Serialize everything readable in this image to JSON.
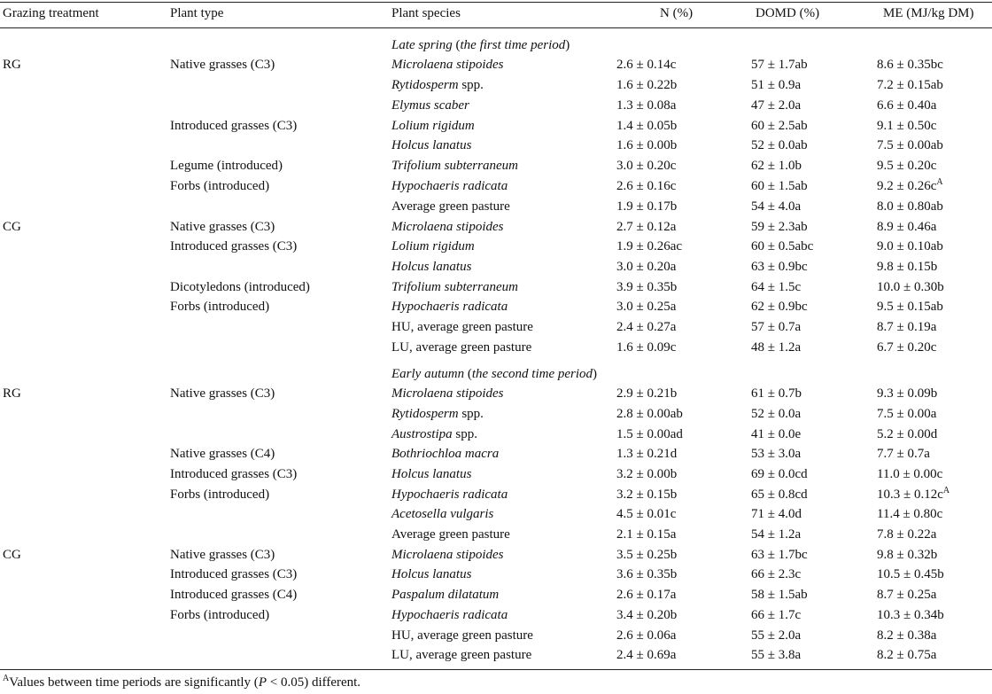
{
  "headers": {
    "treatment": "Grazing treatment",
    "type": "Plant type",
    "species": "Plant species",
    "n": "N (%)",
    "domd": "DOMD (%)",
    "me": "ME (MJ/kg DM)"
  },
  "periods": [
    {
      "season": "Late spring",
      "open": " (",
      "desc": "the first time period",
      "close": ")",
      "rows": [
        {
          "treatment": "RG",
          "type": "Native grasses (C3)",
          "species": "Microlaena stipoides",
          "italic": true,
          "n": "2.6 ± 0.14c",
          "domd": "57 ± 1.7ab",
          "me": "8.6 ± 0.35bc"
        },
        {
          "treatment": "",
          "type": "",
          "species": "Rytidosperm",
          "species_suffix": " spp.",
          "italic": true,
          "n": "1.6 ± 0.22b",
          "domd": "51 ± 0.9a",
          "me": "7.2 ± 0.15ab"
        },
        {
          "treatment": "",
          "type": "",
          "species": "Elymus scaber",
          "italic": true,
          "n": "1.3 ± 0.08a",
          "domd": "47 ± 2.0a",
          "me": "6.6 ± 0.40a"
        },
        {
          "treatment": "",
          "type": "Introduced grasses (C3)",
          "species": "Lolium rigidum",
          "italic": true,
          "n": "1.4 ± 0.05b",
          "domd": "60 ± 2.5ab",
          "me": "9.1 ± 0.50c"
        },
        {
          "treatment": "",
          "type": "",
          "species": "Holcus lanatus",
          "italic": true,
          "n": "1.6 ± 0.00b",
          "domd": "52 ± 0.0ab",
          "me": "7.5 ± 0.00ab"
        },
        {
          "treatment": "",
          "type": "Legume (introduced)",
          "species": "Trifolium subterraneum",
          "italic": true,
          "n": "3.0 ± 0.20c",
          "domd": "62 ± 1.0b",
          "me": "9.5 ± 0.20c"
        },
        {
          "treatment": "",
          "type": "Forbs (introduced)",
          "species": "Hypochaeris radicata",
          "italic": true,
          "n": "2.6 ± 0.16c",
          "domd": "60 ± 1.5ab",
          "me": "9.2 ± 0.26c",
          "me_sup": "A"
        },
        {
          "treatment": "",
          "type": "",
          "species": "Average green pasture",
          "italic": false,
          "n": "1.9 ± 0.17b",
          "domd": "54 ± 4.0a",
          "me": "8.0 ± 0.80ab"
        },
        {
          "treatment": "CG",
          "type": "Native grasses (C3)",
          "species": "Microlaena stipoides",
          "italic": true,
          "n": "2.7 ± 0.12a",
          "domd": "59 ± 2.3ab",
          "me": "8.9 ± 0.46a"
        },
        {
          "treatment": "",
          "type": "Introduced grasses (C3)",
          "species": "Lolium rigidum",
          "italic": true,
          "n": "1.9 ± 0.26ac",
          "domd": "60 ± 0.5abc",
          "me": "9.0 ± 0.10ab"
        },
        {
          "treatment": "",
          "type": "",
          "species": "Holcus lanatus",
          "italic": true,
          "n": "3.0 ± 0.20a",
          "domd": "63 ± 0.9bc",
          "me": "9.8 ± 0.15b"
        },
        {
          "treatment": "",
          "type": "Dicotyledons (introduced)",
          "species": "Trifolium subterraneum",
          "italic": true,
          "n": "3.9 ± 0.35b",
          "domd": "64 ± 1.5c",
          "me": "10.0 ± 0.30b"
        },
        {
          "treatment": "",
          "type": "Forbs (introduced)",
          "species": "Hypochaeris radicata",
          "italic": true,
          "n": "3.0 ± 0.25a",
          "domd": "62 ± 0.9bc",
          "me": "9.5 ± 0.15ab"
        },
        {
          "treatment": "",
          "type": "",
          "species": "HU, average green pasture",
          "italic": false,
          "n": "2.4 ± 0.27a",
          "domd": "57 ± 0.7a",
          "me": "8.7 ± 0.19a"
        },
        {
          "treatment": "",
          "type": "",
          "species": "LU, average green pasture",
          "italic": false,
          "n": "1.6 ± 0.09c",
          "domd": "48 ± 1.2a",
          "me": "6.7 ± 0.20c"
        }
      ]
    },
    {
      "season": "Early autumn",
      "open": " (",
      "desc": "the second time period",
      "close": ")",
      "rows": [
        {
          "treatment": "RG",
          "type": "Native grasses (C3)",
          "species": "Microlaena stipoides",
          "italic": true,
          "n": "2.9 ± 0.21b",
          "domd": "61 ± 0.7b",
          "me": "9.3 ± 0.09b"
        },
        {
          "treatment": "",
          "type": "",
          "species": "Rytidosperm",
          "species_suffix": " spp.",
          "italic": true,
          "n": "2.8 ± 0.00ab",
          "domd": "52 ± 0.0a",
          "me": "7.5 ± 0.00a"
        },
        {
          "treatment": "",
          "type": "",
          "species": "Austrostipa",
          "species_suffix": " spp.",
          "italic": true,
          "n": "1.5 ± 0.00ad",
          "domd": "41 ± 0.0e",
          "me": "5.2 ± 0.00d"
        },
        {
          "treatment": "",
          "type": "Native grasses (C4)",
          "species": "Bothriochloa macra",
          "italic": true,
          "n": "1.3 ± 0.21d",
          "domd": "53 ± 3.0a",
          "me": "7.7 ± 0.7a"
        },
        {
          "treatment": "",
          "type": "Introduced grasses (C3)",
          "species": "Holcus lanatus",
          "italic": true,
          "n": "3.2 ± 0.00b",
          "domd": "69 ± 0.0cd",
          "me": "11.0 ± 0.00c"
        },
        {
          "treatment": "",
          "type": "Forbs (introduced)",
          "species": "Hypochaeris radicata",
          "italic": true,
          "n": "3.2 ± 0.15b",
          "domd": "65 ± 0.8cd",
          "me": "10.3 ± 0.12c",
          "me_sup": "A"
        },
        {
          "treatment": "",
          "type": "",
          "species": "Acetosella vulgaris",
          "italic": true,
          "n": "4.5 ± 0.01c",
          "domd": "71 ± 4.0d",
          "me": "11.4 ± 0.80c"
        },
        {
          "treatment": "",
          "type": "",
          "species": "Average green pasture",
          "italic": false,
          "n": "2.1 ± 0.15a",
          "domd": "54 ± 1.2a",
          "me": "7.8 ± 0.22a"
        },
        {
          "treatment": "CG",
          "type": "Native grasses (C3)",
          "species": "Microlaena stipoides",
          "italic": true,
          "n": "3.5 ± 0.25b",
          "domd": "63 ± 1.7bc",
          "me": "9.8 ± 0.32b"
        },
        {
          "treatment": "",
          "type": "Introduced grasses (C3)",
          "species": "Holcus lanatus",
          "italic": true,
          "n": "3.6 ± 0.35b",
          "domd": "66 ± 2.3c",
          "me": "10.5 ± 0.45b"
        },
        {
          "treatment": "",
          "type": "Introduced grasses (C4)",
          "species": "Paspalum dilatatum",
          "italic": true,
          "n": "2.6 ± 0.17a",
          "domd": "58 ± 1.5ab",
          "me": "8.7 ± 0.25a"
        },
        {
          "treatment": "",
          "type": "Forbs (introduced)",
          "species": "Hypochaeris radicata",
          "italic": true,
          "n": "3.4 ± 0.20b",
          "domd": "66 ± 1.7c",
          "me": "10.3 ± 0.34b"
        },
        {
          "treatment": "",
          "type": "",
          "species": "HU, average green pasture",
          "italic": false,
          "n": "2.6 ± 0.06a",
          "domd": "55 ± 2.0a",
          "me": "8.2 ± 0.38a"
        },
        {
          "treatment": "",
          "type": "",
          "species": "LU, average green pasture",
          "italic": false,
          "n": "2.4 ± 0.69a",
          "domd": "55 ± 3.8a",
          "me": "8.2 ± 0.75a"
        }
      ]
    }
  ],
  "footnote": {
    "marker": "A",
    "text_before": "Values between time periods are significantly (",
    "p": "P",
    "text_after": " < 0.05) different."
  }
}
